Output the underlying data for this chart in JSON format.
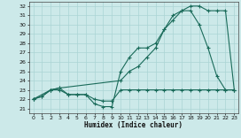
{
  "xlabel": "Humidex (Indice chaleur)",
  "xlim": [
    -0.5,
    23.5
  ],
  "ylim": [
    20.5,
    32.5
  ],
  "xticks": [
    0,
    1,
    2,
    3,
    4,
    5,
    6,
    7,
    8,
    9,
    10,
    11,
    12,
    13,
    14,
    15,
    16,
    17,
    18,
    19,
    20,
    21,
    22,
    23
  ],
  "yticks": [
    21,
    22,
    23,
    24,
    25,
    26,
    27,
    28,
    29,
    30,
    31,
    32
  ],
  "bg_color": "#cce9e9",
  "grid_color": "#aad4d4",
  "line_color": "#1a6b5a",
  "line1_x": [
    0,
    1,
    2,
    3,
    4,
    5,
    6,
    7,
    8,
    9,
    10,
    11,
    12,
    13,
    14,
    15,
    16,
    17,
    18,
    19,
    20,
    21,
    22,
    23
  ],
  "line1_y": [
    22,
    22.3,
    23,
    23,
    22.5,
    22.5,
    22.5,
    22,
    21.8,
    21.8,
    23,
    23,
    23,
    23,
    23,
    23,
    23,
    23,
    23,
    23,
    23,
    23,
    23,
    23
  ],
  "line2_x": [
    0,
    1,
    2,
    3,
    4,
    5,
    6,
    7,
    8,
    9,
    10,
    11,
    12,
    13,
    14,
    15,
    16,
    17,
    18,
    19,
    20,
    21,
    22,
    23
  ],
  "line2_y": [
    22,
    22.3,
    23,
    23.2,
    22.5,
    22.5,
    22.5,
    21.5,
    21.2,
    21.2,
    25,
    26.5,
    27.5,
    27.5,
    28,
    29.5,
    30.5,
    31.5,
    31.5,
    30,
    27.5,
    24.5,
    23,
    23
  ],
  "line3_x": [
    0,
    2,
    3,
    10,
    11,
    12,
    13,
    14,
    15,
    16,
    17,
    18,
    19,
    20,
    21,
    22,
    23
  ],
  "line3_y": [
    22,
    23,
    23.2,
    24,
    25,
    25.5,
    26.5,
    27.5,
    29.5,
    31,
    31.5,
    32,
    32,
    31.5,
    31.5,
    31.5,
    23
  ]
}
